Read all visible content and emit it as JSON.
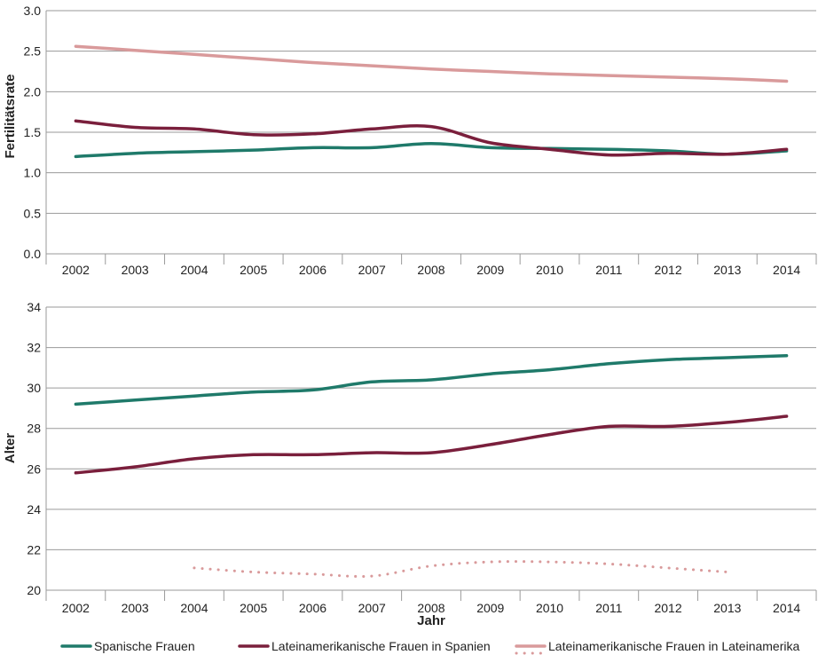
{
  "colors": {
    "spanish": "#1f7a6a",
    "latin_spain": "#7a1f3c",
    "latin_america": "#d99a9b"
  },
  "chart_data": [
    {
      "type": "line",
      "ylabel": "Fertilitätsrate",
      "xlabel": "",
      "ylim": [
        0,
        3.0
      ],
      "yticks": [
        "0.0",
        "0.5",
        "1.0",
        "1.5",
        "2.0",
        "2.5",
        "3.0"
      ],
      "x": [
        "2002",
        "2003",
        "2004",
        "2005",
        "2006",
        "2007",
        "2008",
        "2009",
        "2010",
        "2011",
        "2012",
        "2013",
        "2014"
      ],
      "series": [
        {
          "name": "Spanische Frauen",
          "color_key": "spanish",
          "style": "solid",
          "values": [
            1.2,
            1.24,
            1.26,
            1.28,
            1.31,
            1.31,
            1.36,
            1.31,
            1.3,
            1.29,
            1.27,
            1.23,
            1.27
          ]
        },
        {
          "name": "Lateinamerikanische Frauen in Spanien",
          "color_key": "latin_spain",
          "style": "solid",
          "values": [
            1.64,
            1.56,
            1.54,
            1.47,
            1.48,
            1.54,
            1.57,
            1.37,
            1.29,
            1.22,
            1.24,
            1.23,
            1.29
          ]
        },
        {
          "name": "Lateinamerikanische Frauen in Lateinamerika",
          "color_key": "latin_america",
          "style": "solid",
          "values": [
            2.56,
            2.51,
            2.46,
            2.41,
            2.36,
            2.32,
            2.28,
            2.25,
            2.22,
            2.2,
            2.18,
            2.16,
            2.13
          ]
        }
      ]
    },
    {
      "type": "line",
      "ylabel": "Alter",
      "xlabel": "Jahr",
      "ylim": [
        20,
        34
      ],
      "yticks": [
        "20",
        "22",
        "24",
        "26",
        "28",
        "30",
        "32",
        "34"
      ],
      "x": [
        "2002",
        "2003",
        "2004",
        "2005",
        "2006",
        "2007",
        "2008",
        "2009",
        "2010",
        "2011",
        "2012",
        "2013",
        "2014"
      ],
      "series": [
        {
          "name": "Spanische Frauen",
          "color_key": "spanish",
          "style": "solid",
          "values": [
            29.2,
            29.4,
            29.6,
            29.8,
            29.9,
            30.3,
            30.4,
            30.7,
            30.9,
            31.2,
            31.4,
            31.5,
            31.6
          ]
        },
        {
          "name": "Lateinamerikanische Frauen in Spanien",
          "color_key": "latin_spain",
          "style": "solid",
          "values": [
            25.8,
            26.1,
            26.5,
            26.7,
            26.7,
            26.8,
            26.8,
            27.2,
            27.7,
            28.1,
            28.1,
            28.3,
            28.6
          ]
        },
        {
          "name": "Lateinamerikanische Frauen in Lateinamerika",
          "color_key": "latin_america",
          "style": "dotted",
          "values": [
            null,
            null,
            21.1,
            20.9,
            20.8,
            20.7,
            21.2,
            21.4,
            21.4,
            21.3,
            21.1,
            20.9,
            null
          ]
        }
      ]
    }
  ],
  "legend": [
    {
      "label": "Spanische Frauen",
      "color_key": "spanish",
      "style": "solid"
    },
    {
      "label": "Lateinamerikanische Frauen in Spanien",
      "color_key": "latin_spain",
      "style": "solid"
    },
    {
      "label": "Lateinamerikanische Frauen in Lateinamerika",
      "color_key": "latin_america",
      "style": "solid-dotted"
    }
  ]
}
